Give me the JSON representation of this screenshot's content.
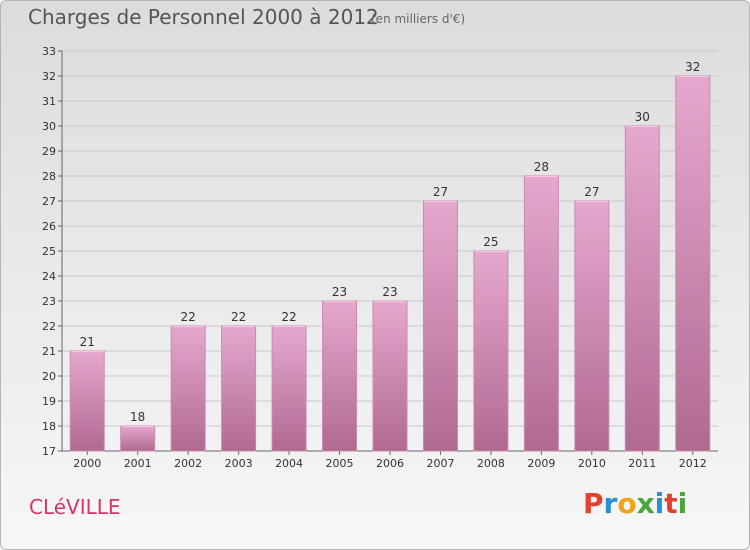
{
  "header": {
    "title": "Charges de Personnel 2000 à 2012",
    "subtitle": "(en milliers d'€)"
  },
  "footer": {
    "commune": "CLéVILLE",
    "brand_letters": [
      {
        "ch": "P",
        "color": "#e8402f"
      },
      {
        "ch": "r",
        "color": "#2a8fd6"
      },
      {
        "ch": "o",
        "color": "#f0a21a"
      },
      {
        "ch": "x",
        "color": "#4aa540"
      },
      {
        "ch": "i",
        "color": "#2a8fd6"
      },
      {
        "ch": "t",
        "color": "#e8402f"
      },
      {
        "ch": "i",
        "color": "#4aa540"
      }
    ]
  },
  "chart_data": {
    "type": "bar",
    "categories": [
      "2000",
      "2001",
      "2002",
      "2003",
      "2004",
      "2005",
      "2006",
      "2007",
      "2008",
      "2009",
      "2010",
      "2011",
      "2012"
    ],
    "values": [
      21,
      18,
      22,
      22,
      22,
      23,
      23,
      27,
      25,
      28,
      27,
      30,
      32
    ],
    "ylim": [
      17,
      33
    ],
    "yticks": [
      17,
      18,
      19,
      20,
      21,
      22,
      23,
      24,
      25,
      26,
      27,
      28,
      29,
      30,
      31,
      32,
      33
    ],
    "grid": true,
    "bar_color_top": "#e6a8ce",
    "bar_color_bottom": "#b06a92",
    "grid_color": "#c8c8c8"
  }
}
